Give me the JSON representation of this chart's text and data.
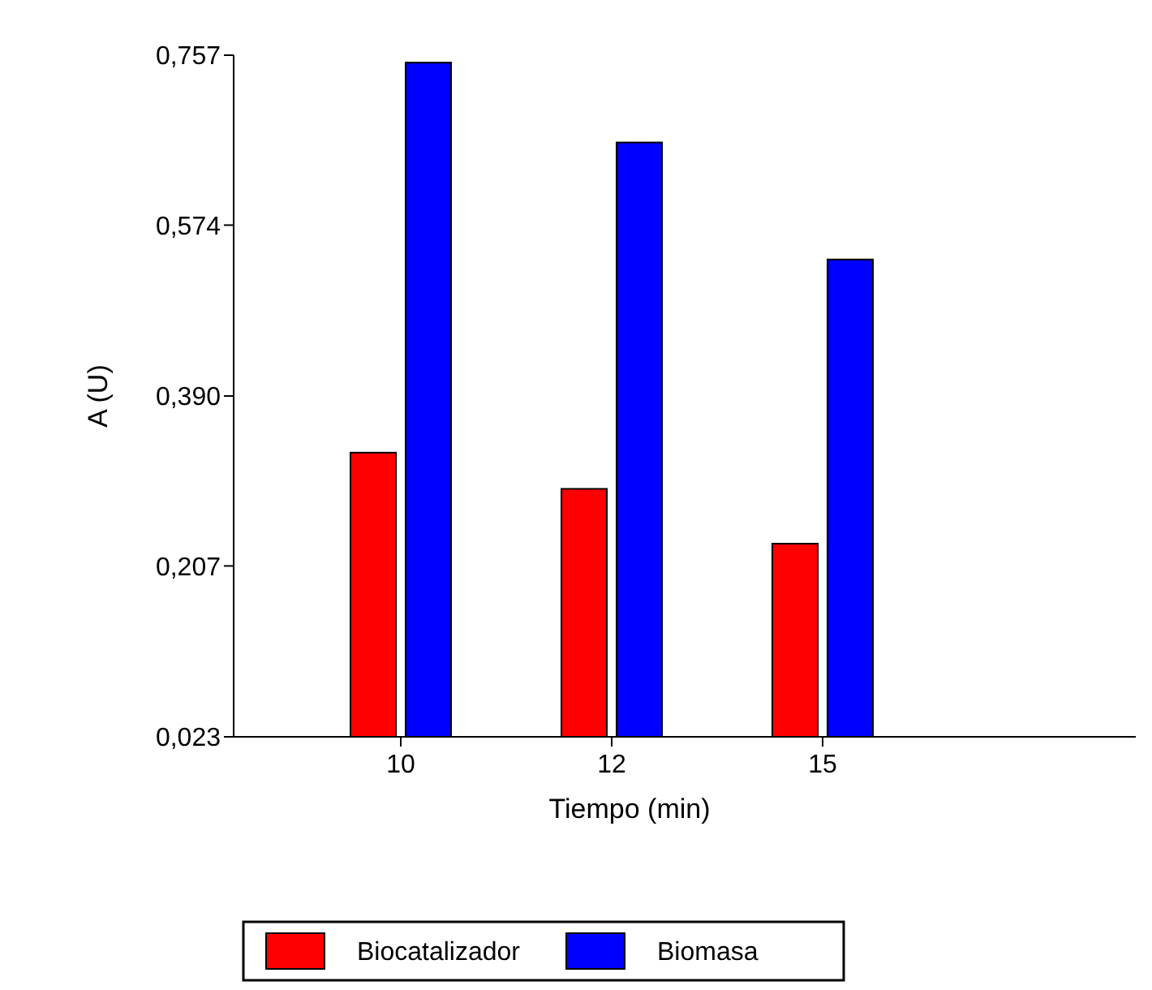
{
  "chart_data": {
    "type": "bar",
    "xlabel": "Tiempo (min)",
    "ylabel": "A (U)",
    "categories": [
      "10",
      "12",
      "15"
    ],
    "series": [
      {
        "name": "Biocatalizador",
        "color": "#ff0000",
        "values": [
          0.329,
          0.29,
          0.231
        ]
      },
      {
        "name": "Biomasa",
        "color": "#0000ff",
        "values": [
          0.749,
          0.663,
          0.537
        ]
      }
    ],
    "ylim": [
      0.023,
      0.757
    ],
    "yticks": [
      {
        "value": 0.023,
        "label": "0,023"
      },
      {
        "value": 0.207,
        "label": "0,207"
      },
      {
        "value": 0.39,
        "label": "0,390"
      },
      {
        "value": 0.574,
        "label": "0,574"
      },
      {
        "value": 0.757,
        "label": "0,757"
      }
    ],
    "grid": false,
    "legend": "bottom"
  }
}
